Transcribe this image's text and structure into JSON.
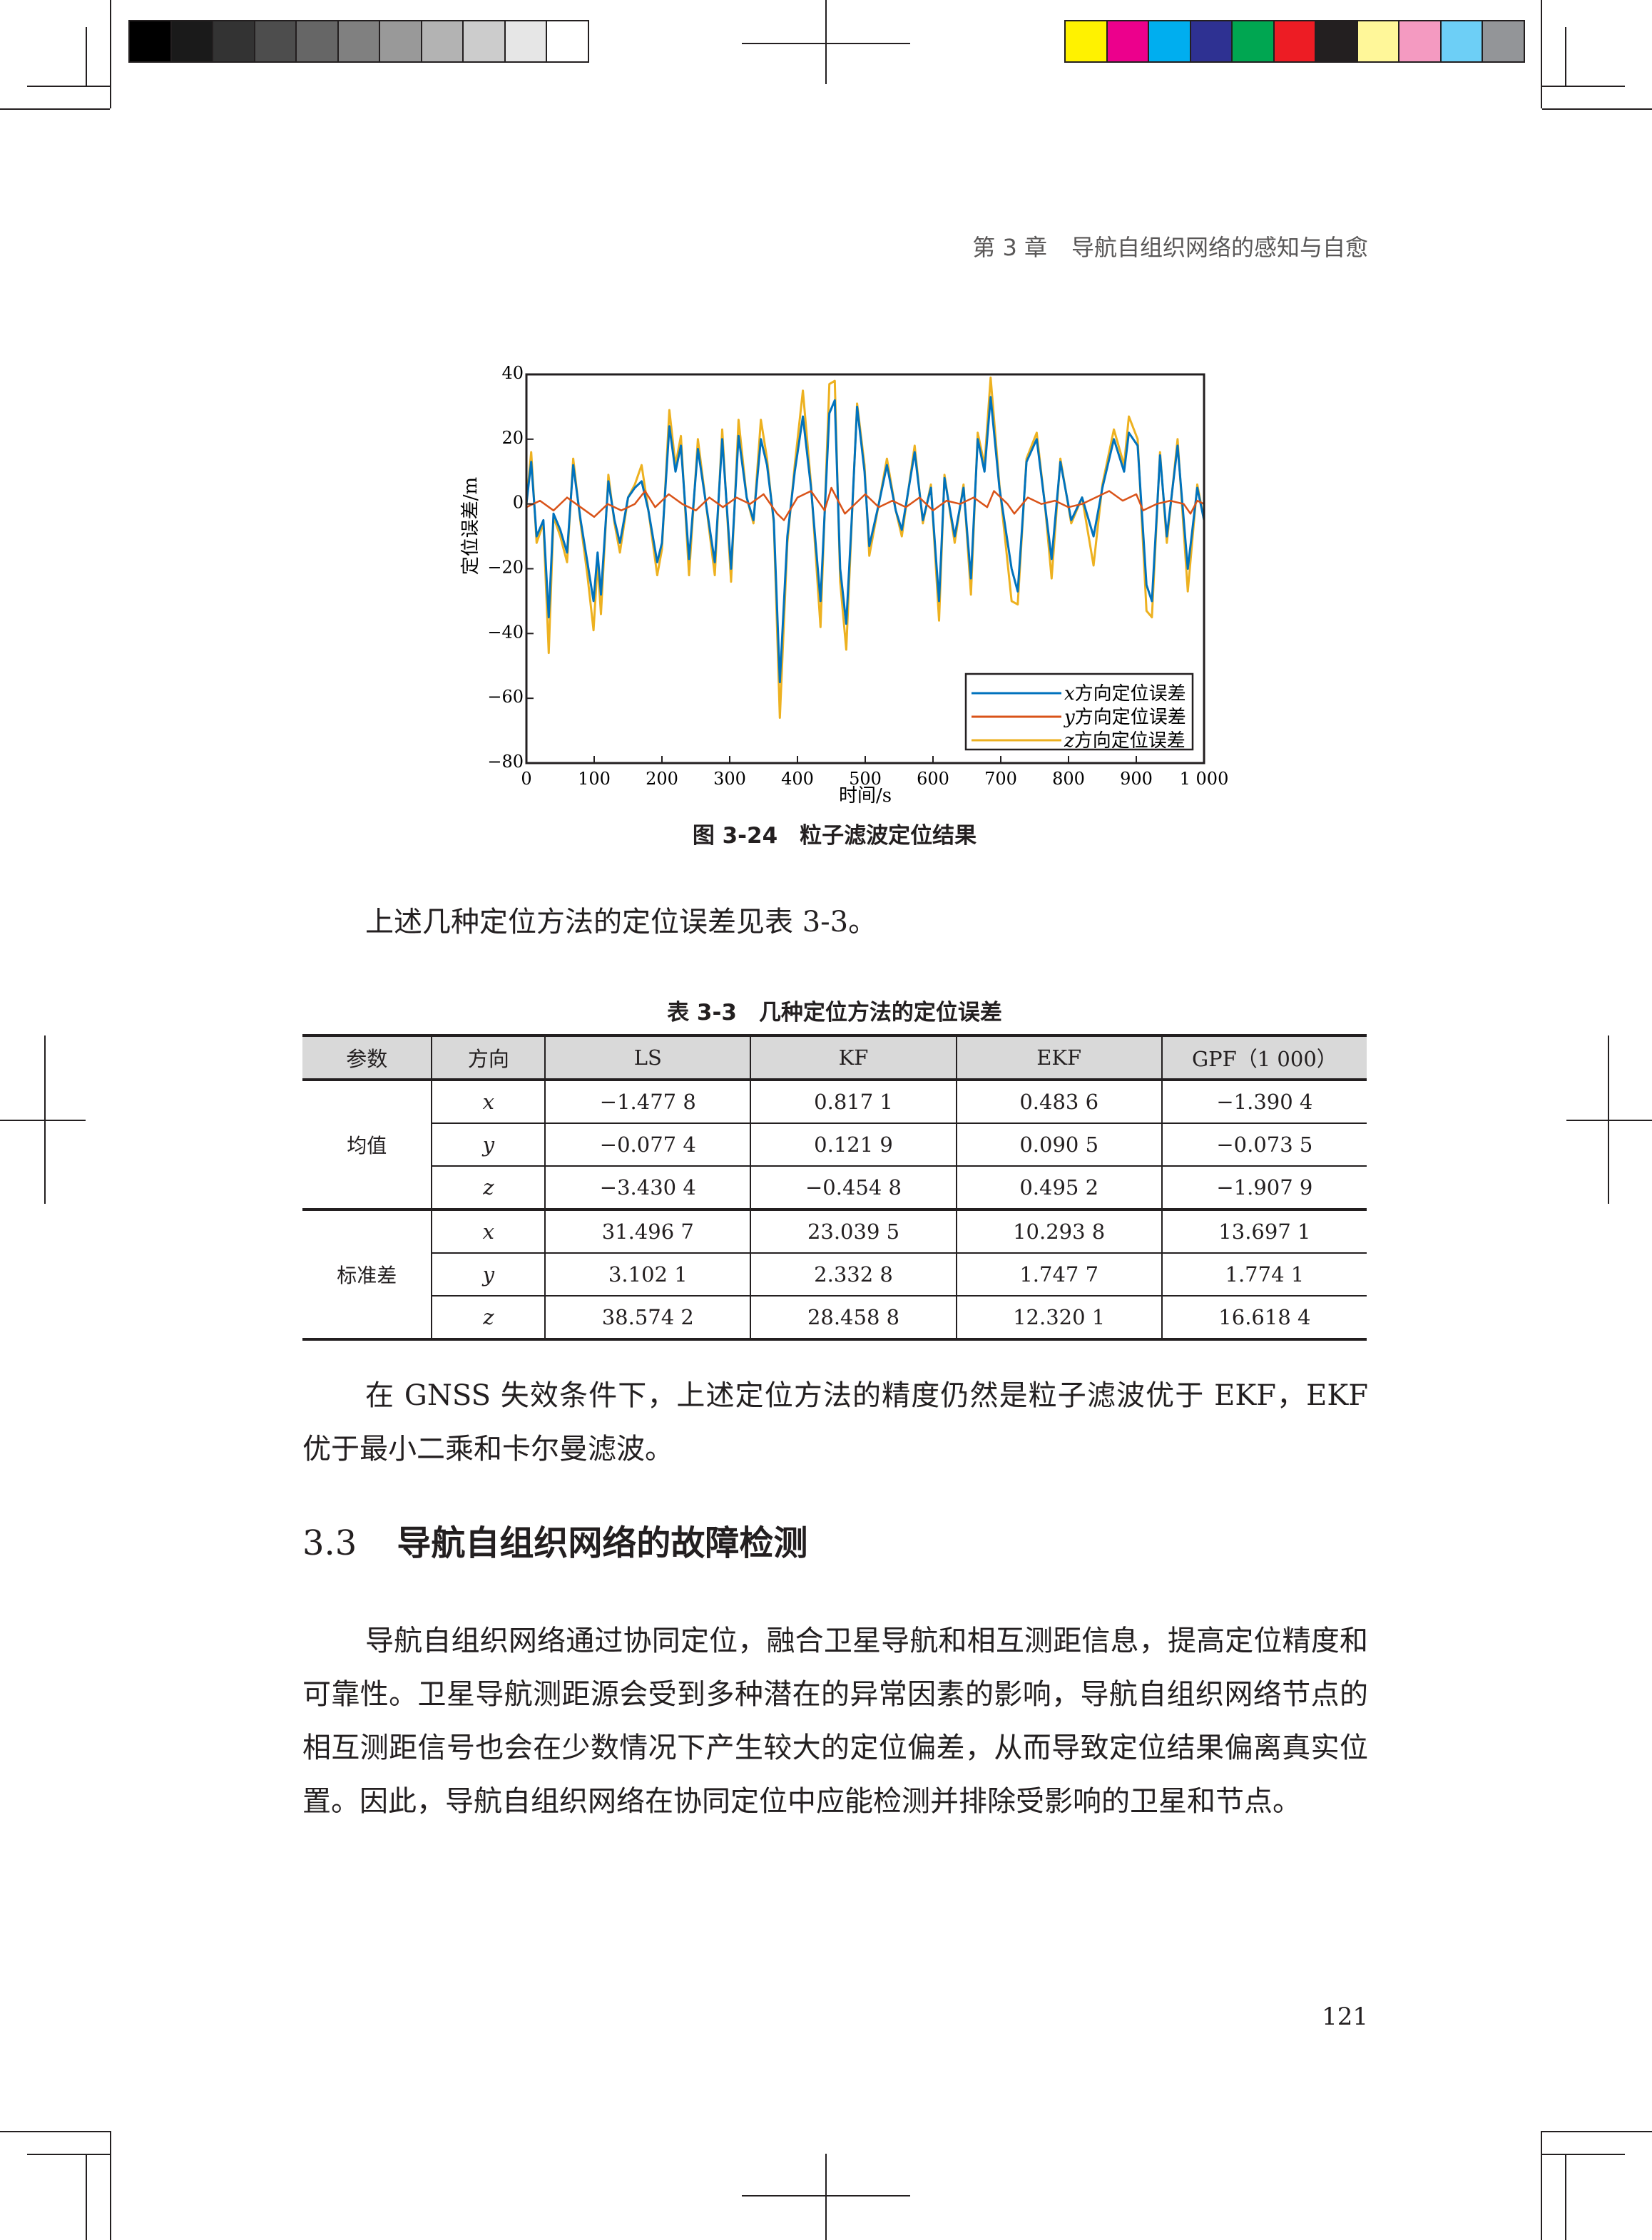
{
  "calibration": {
    "grayscale": [
      "#000000",
      "#1a1a1a",
      "#333333",
      "#4d4d4d",
      "#666666",
      "#808080",
      "#999999",
      "#b3b3b3",
      "#cccccc",
      "#e6e6e6",
      "#ffffff"
    ],
    "colors": [
      "#fff200",
      "#ec008c",
      "#00aeef",
      "#2e3192",
      "#00a651",
      "#ed1c24",
      "#231f20",
      "#fff799",
      "#f49ac1",
      "#6dcff6",
      "#939598"
    ]
  },
  "header": {
    "chapter": "第 3 章",
    "title": "导航自组织网络的感知与自愈"
  },
  "figure": {
    "caption": "图 3-24　粒子滤波定位结果"
  },
  "chart_data": {
    "type": "line",
    "xlabel": "时间/s",
    "ylabel": "定位误差/m",
    "xlim": [
      0,
      1000
    ],
    "ylim": [
      -80,
      40
    ],
    "xticks": [
      0,
      100,
      200,
      300,
      400,
      500,
      600,
      700,
      800,
      900,
      1000
    ],
    "xtick_labels": [
      "0",
      "100",
      "200",
      "300",
      "400",
      "500",
      "600",
      "700",
      "800",
      "900",
      "1 000"
    ],
    "yticks": [
      40,
      20,
      0,
      -20,
      -40,
      -60,
      -80
    ],
    "ytick_labels": [
      "40",
      "20",
      "0",
      "−20",
      "−40",
      "−60",
      "−80"
    ],
    "legend_placement": "bottom-right",
    "grid": false,
    "series": [
      {
        "name": "z方向定位误差",
        "name_var": "z",
        "name_rest": "方向定位误差",
        "color": "#edb120",
        "points": [
          [
            0,
            0
          ],
          [
            7,
            16
          ],
          [
            15,
            -12
          ],
          [
            25,
            -6
          ],
          [
            33,
            -46
          ],
          [
            40,
            -4
          ],
          [
            50,
            -10
          ],
          [
            60,
            -18
          ],
          [
            69,
            14
          ],
          [
            80,
            -6
          ],
          [
            90,
            -22
          ],
          [
            99,
            -39
          ],
          [
            105,
            -18
          ],
          [
            110,
            -34
          ],
          [
            121,
            9
          ],
          [
            130,
            -6
          ],
          [
            138,
            -15
          ],
          [
            150,
            2
          ],
          [
            160,
            6
          ],
          [
            170,
            12
          ],
          [
            180,
            -2
          ],
          [
            193,
            -22
          ],
          [
            200,
            -14
          ],
          [
            211,
            29
          ],
          [
            220,
            12
          ],
          [
            228,
            21
          ],
          [
            240,
            -22
          ],
          [
            253,
            20
          ],
          [
            265,
            0
          ],
          [
            278,
            -22
          ],
          [
            289,
            23
          ],
          [
            302,
            -24
          ],
          [
            313,
            26
          ],
          [
            325,
            2
          ],
          [
            335,
            -6
          ],
          [
            346,
            26
          ],
          [
            355,
            14
          ],
          [
            365,
            -6
          ],
          [
            374,
            -66
          ],
          [
            385,
            -12
          ],
          [
            396,
            12
          ],
          [
            408,
            35
          ],
          [
            420,
            6
          ],
          [
            434,
            -38
          ],
          [
            447,
            37
          ],
          [
            455,
            38
          ],
          [
            463,
            -24
          ],
          [
            472,
            -45
          ],
          [
            480,
            -6
          ],
          [
            488,
            31
          ],
          [
            499,
            12
          ],
          [
            506,
            -16
          ],
          [
            520,
            0
          ],
          [
            532,
            14
          ],
          [
            545,
            -2
          ],
          [
            554,
            -10
          ],
          [
            573,
            18
          ],
          [
            585,
            -6
          ],
          [
            597,
            6
          ],
          [
            609,
            -36
          ],
          [
            617,
            9
          ],
          [
            632,
            -12
          ],
          [
            645,
            6
          ],
          [
            656,
            -28
          ],
          [
            666,
            22
          ],
          [
            676,
            12
          ],
          [
            685,
            39
          ],
          [
            698,
            6
          ],
          [
            716,
            -30
          ],
          [
            725,
            -31
          ],
          [
            738,
            14
          ],
          [
            753,
            22
          ],
          [
            765,
            0
          ],
          [
            775,
            -23
          ],
          [
            788,
            14
          ],
          [
            804,
            -6
          ],
          [
            820,
            2
          ],
          [
            837,
            -19
          ],
          [
            850,
            6
          ],
          [
            867,
            23
          ],
          [
            882,
            12
          ],
          [
            889,
            27
          ],
          [
            902,
            20
          ],
          [
            915,
            -33
          ],
          [
            923,
            -35
          ],
          [
            935,
            16
          ],
          [
            945,
            -12
          ],
          [
            961,
            20
          ],
          [
            976,
            -27
          ],
          [
            990,
            6
          ],
          [
            1000,
            -5
          ]
        ]
      },
      {
        "name": "x方向定位误差",
        "name_var": "x",
        "name_rest": "方向定位误差",
        "color": "#0072bd",
        "points": [
          [
            0,
            0
          ],
          [
            7,
            13
          ],
          [
            15,
            -10
          ],
          [
            25,
            -5
          ],
          [
            33,
            -35
          ],
          [
            40,
            -3
          ],
          [
            50,
            -8
          ],
          [
            60,
            -15
          ],
          [
            69,
            12
          ],
          [
            80,
            -5
          ],
          [
            90,
            -18
          ],
          [
            99,
            -30
          ],
          [
            105,
            -15
          ],
          [
            110,
            -28
          ],
          [
            121,
            7
          ],
          [
            130,
            -5
          ],
          [
            138,
            -12
          ],
          [
            150,
            2
          ],
          [
            160,
            5
          ],
          [
            170,
            7
          ],
          [
            180,
            -2
          ],
          [
            193,
            -18
          ],
          [
            200,
            -12
          ],
          [
            211,
            24
          ],
          [
            220,
            10
          ],
          [
            228,
            18
          ],
          [
            240,
            -17
          ],
          [
            253,
            17
          ],
          [
            265,
            0
          ],
          [
            278,
            -18
          ],
          [
            289,
            20
          ],
          [
            302,
            -20
          ],
          [
            313,
            21
          ],
          [
            325,
            2
          ],
          [
            335,
            -5
          ],
          [
            346,
            20
          ],
          [
            355,
            12
          ],
          [
            365,
            -5
          ],
          [
            374,
            -55
          ],
          [
            385,
            -10
          ],
          [
            396,
            10
          ],
          [
            408,
            27
          ],
          [
            420,
            5
          ],
          [
            434,
            -30
          ],
          [
            447,
            28
          ],
          [
            455,
            32
          ],
          [
            463,
            -20
          ],
          [
            472,
            -37
          ],
          [
            480,
            -5
          ],
          [
            488,
            30
          ],
          [
            499,
            10
          ],
          [
            506,
            -13
          ],
          [
            520,
            0
          ],
          [
            532,
            12
          ],
          [
            545,
            -2
          ],
          [
            554,
            -8
          ],
          [
            573,
            16
          ],
          [
            585,
            -5
          ],
          [
            597,
            5
          ],
          [
            609,
            -30
          ],
          [
            617,
            8
          ],
          [
            632,
            -10
          ],
          [
            645,
            5
          ],
          [
            656,
            -23
          ],
          [
            666,
            20
          ],
          [
            676,
            10
          ],
          [
            685,
            33
          ],
          [
            698,
            5
          ],
          [
            716,
            -20
          ],
          [
            725,
            -27
          ],
          [
            738,
            13
          ],
          [
            753,
            20
          ],
          [
            765,
            0
          ],
          [
            775,
            -17
          ],
          [
            788,
            13
          ],
          [
            804,
            -5
          ],
          [
            820,
            2
          ],
          [
            837,
            -10
          ],
          [
            850,
            5
          ],
          [
            867,
            20
          ],
          [
            882,
            10
          ],
          [
            889,
            22
          ],
          [
            902,
            18
          ],
          [
            915,
            -25
          ],
          [
            923,
            -30
          ],
          [
            935,
            15
          ],
          [
            945,
            -10
          ],
          [
            961,
            18
          ],
          [
            976,
            -20
          ],
          [
            990,
            5
          ],
          [
            1000,
            -5
          ]
        ]
      },
      {
        "name": "y方向定位误差",
        "name_var": "y",
        "name_rest": "方向定位误差",
        "color": "#d95319",
        "points": [
          [
            0,
            -1
          ],
          [
            20,
            1
          ],
          [
            40,
            -2
          ],
          [
            60,
            2
          ],
          [
            80,
            -1
          ],
          [
            100,
            -4
          ],
          [
            120,
            0
          ],
          [
            140,
            -2
          ],
          [
            160,
            0
          ],
          [
            175,
            4
          ],
          [
            190,
            -1
          ],
          [
            210,
            3
          ],
          [
            230,
            0
          ],
          [
            250,
            -2
          ],
          [
            270,
            2
          ],
          [
            290,
            -1
          ],
          [
            310,
            2
          ],
          [
            330,
            0
          ],
          [
            350,
            3
          ],
          [
            370,
            -3
          ],
          [
            380,
            -5
          ],
          [
            400,
            2
          ],
          [
            420,
            4
          ],
          [
            440,
            -2
          ],
          [
            450,
            5
          ],
          [
            470,
            -3
          ],
          [
            490,
            1
          ],
          [
            500,
            3
          ],
          [
            520,
            -1
          ],
          [
            540,
            1
          ],
          [
            560,
            -1
          ],
          [
            580,
            2
          ],
          [
            600,
            -2
          ],
          [
            620,
            1
          ],
          [
            640,
            0
          ],
          [
            660,
            2
          ],
          [
            680,
            -1
          ],
          [
            690,
            4
          ],
          [
            710,
            0
          ],
          [
            720,
            -3
          ],
          [
            740,
            2
          ],
          [
            760,
            0
          ],
          [
            780,
            1
          ],
          [
            800,
            -1
          ],
          [
            820,
            0
          ],
          [
            840,
            2
          ],
          [
            860,
            4
          ],
          [
            880,
            1
          ],
          [
            900,
            3
          ],
          [
            910,
            -2
          ],
          [
            930,
            0
          ],
          [
            950,
            1
          ],
          [
            970,
            0
          ],
          [
            980,
            -3
          ],
          [
            990,
            1
          ],
          [
            1000,
            0
          ]
        ]
      }
    ],
    "legend_order": [
      1,
      2,
      0
    ]
  },
  "intro_text": "上述几种定位方法的定位误差见表 3-3。",
  "table": {
    "caption": "表 3-3　几种定位方法的定位误差",
    "headers": [
      "参数",
      "方向",
      "LS",
      "KF",
      "EKF",
      "GPF（1 000）"
    ],
    "groups": [
      {
        "label": "均值",
        "rows": [
          {
            "dir": "x",
            "values": [
              "−1.477 8",
              "0.817 1",
              "0.483 6",
              "−1.390 4"
            ]
          },
          {
            "dir": "y",
            "values": [
              "−0.077 4",
              "0.121 9",
              "0.090 5",
              "−0.073 5"
            ]
          },
          {
            "dir": "z",
            "values": [
              "−3.430 4",
              "−0.454 8",
              "0.495 2",
              "−1.907 9"
            ]
          }
        ]
      },
      {
        "label": "标准差",
        "rows": [
          {
            "dir": "x",
            "values": [
              "31.496 7",
              "23.039 5",
              "10.293 8",
              "13.697 1"
            ]
          },
          {
            "dir": "y",
            "values": [
              "3.102 1",
              "2.332 8",
              "1.747 7",
              "1.774 1"
            ]
          },
          {
            "dir": "z",
            "values": [
              "38.574 2",
              "28.458 8",
              "12.320 1",
              "16.618 4"
            ]
          }
        ]
      }
    ]
  },
  "para1": "在 GNSS 失效条件下，上述定位方法的精度仍然是粒子滤波优于 EKF，EKF 优于最小二乘和卡尔曼滤波。",
  "section": {
    "number": "3.3",
    "title": "导航自组织网络的故障检测"
  },
  "para2": "导航自组织网络通过协同定位，融合卫星导航和相互测距信息，提高定位精度和可靠性。卫星导航测距源会受到多种潜在的异常因素的影响，导航自组织网络节点的相互测距信号也会在少数情况下产生较大的定位偏差，从而导致定位结果偏离真实位置。因此，导航自组织网络在协同定位中应能检测并排除受影响的卫星和节点。",
  "page_number": "121"
}
